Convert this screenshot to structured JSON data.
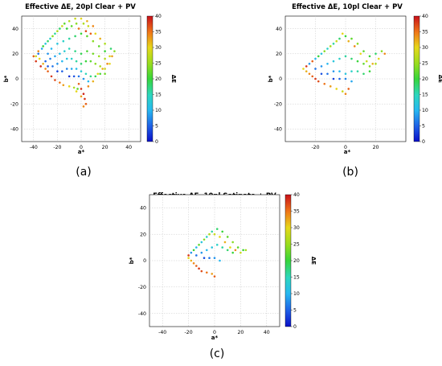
{
  "chart_data": [
    {
      "type": "scatter",
      "title": "Effective ΔE, 20pl Clear + PV",
      "xlabel": "a*",
      "ylabel": "b*",
      "colorbar_label": "ΔE",
      "xlim": [
        -50,
        50
      ],
      "ylim": [
        -50,
        50
      ],
      "clim": [
        0,
        40
      ],
      "xticks": [
        -40,
        -20,
        0,
        20,
        40
      ],
      "yticks": [
        -40,
        -20,
        0,
        20,
        40
      ],
      "cticks": [
        0,
        5,
        10,
        15,
        20,
        25,
        30,
        35,
        40
      ],
      "grid": true,
      "panel_label": "(a)",
      "points": [
        [
          -38,
          18,
          28
        ],
        [
          -35,
          16,
          30
        ],
        [
          -32,
          12,
          32
        ],
        [
          -30,
          8,
          34
        ],
        [
          -28,
          6,
          36
        ],
        [
          -25,
          2,
          38
        ],
        [
          -22,
          -1,
          37
        ],
        [
          -18,
          -3,
          35
        ],
        [
          -15,
          -5,
          33
        ],
        [
          -10,
          -6,
          30
        ],
        [
          -6,
          -7,
          26
        ],
        [
          -3,
          -8,
          22
        ],
        [
          -36,
          20,
          6
        ],
        [
          -33,
          24,
          9
        ],
        [
          -30,
          28,
          12
        ],
        [
          -26,
          32,
          14
        ],
        [
          -22,
          36,
          16
        ],
        [
          -18,
          40,
          18
        ],
        [
          -14,
          44,
          22
        ],
        [
          -10,
          46,
          26
        ],
        [
          -5,
          48,
          28
        ],
        [
          0,
          48,
          30
        ],
        [
          5,
          46,
          32
        ],
        [
          10,
          42,
          34
        ],
        [
          -28,
          20,
          8
        ],
        [
          -25,
          24,
          10
        ],
        [
          -20,
          28,
          12
        ],
        [
          -15,
          30,
          14
        ],
        [
          -10,
          32,
          16
        ],
        [
          -5,
          34,
          18
        ],
        [
          0,
          36,
          20
        ],
        [
          5,
          34,
          22
        ],
        [
          10,
          30,
          24
        ],
        [
          15,
          26,
          22
        ],
        [
          20,
          22,
          20
        ],
        [
          25,
          24,
          18
        ],
        [
          28,
          22,
          24
        ],
        [
          -30,
          14,
          5
        ],
        [
          -26,
          16,
          7
        ],
        [
          -22,
          18,
          9
        ],
        [
          -18,
          20,
          11
        ],
        [
          -14,
          22,
          13
        ],
        [
          -10,
          24,
          15
        ],
        [
          -5,
          22,
          17
        ],
        [
          0,
          20,
          19
        ],
        [
          5,
          22,
          21
        ],
        [
          10,
          20,
          23
        ],
        [
          15,
          18,
          25
        ],
        [
          20,
          16,
          27
        ],
        [
          24,
          18,
          29
        ],
        [
          -28,
          10,
          4
        ],
        [
          -24,
          10,
          6
        ],
        [
          -20,
          12,
          8
        ],
        [
          -16,
          14,
          10
        ],
        [
          -12,
          16,
          12
        ],
        [
          -8,
          16,
          14
        ],
        [
          -4,
          14,
          16
        ],
        [
          0,
          12,
          18
        ],
        [
          4,
          14,
          20
        ],
        [
          8,
          14,
          22
        ],
        [
          12,
          12,
          24
        ],
        [
          16,
          10,
          26
        ],
        [
          20,
          8,
          28
        ],
        [
          24,
          12,
          30
        ],
        [
          -20,
          6,
          3
        ],
        [
          -16,
          6,
          5
        ],
        [
          -12,
          8,
          7
        ],
        [
          -8,
          8,
          9
        ],
        [
          -4,
          8,
          11
        ],
        [
          0,
          6,
          13
        ],
        [
          4,
          4,
          15
        ],
        [
          8,
          2,
          17
        ],
        [
          12,
          2,
          19
        ],
        [
          16,
          4,
          21
        ],
        [
          20,
          4,
          23
        ],
        [
          -10,
          2,
          2
        ],
        [
          -6,
          2,
          4
        ],
        [
          -2,
          2,
          6
        ],
        [
          2,
          0,
          8
        ],
        [
          6,
          -2,
          10
        ],
        [
          -2,
          -4,
          36
        ],
        [
          0,
          -8,
          38
        ],
        [
          2,
          -12,
          39
        ],
        [
          3,
          -16,
          38
        ],
        [
          4,
          -20,
          36
        ],
        [
          2,
          -22,
          34
        ],
        [
          0,
          -14,
          33
        ],
        [
          -4,
          -10,
          30
        ],
        [
          6,
          -6,
          34
        ],
        [
          10,
          -2,
          32
        ],
        [
          14,
          4,
          30
        ],
        [
          18,
          8,
          32
        ],
        [
          22,
          12,
          34
        ],
        [
          26,
          18,
          33
        ],
        [
          -34,
          10,
          39
        ],
        [
          -38,
          14,
          38
        ],
        [
          -40,
          18,
          36
        ],
        [
          -36,
          22,
          34
        ],
        [
          -32,
          26,
          20
        ],
        [
          -28,
          30,
          18
        ],
        [
          -24,
          34,
          24
        ],
        [
          -20,
          38,
          26
        ],
        [
          -16,
          42,
          28
        ],
        [
          -12,
          40,
          20
        ],
        [
          -8,
          42,
          22
        ],
        [
          -4,
          44,
          24
        ],
        [
          2,
          44,
          26
        ],
        [
          6,
          42,
          28
        ],
        [
          12,
          36,
          30
        ],
        [
          16,
          32,
          32
        ],
        [
          20,
          28,
          26
        ],
        [
          -2,
          40,
          35
        ],
        [
          4,
          38,
          37
        ],
        [
          8,
          36,
          36
        ]
      ]
    },
    {
      "type": "scatter",
      "title": "Effective ΔE, 10pl Clear + PV",
      "xlabel": "a*",
      "ylabel": "b*",
      "colorbar_label": "ΔE",
      "xlim": [
        -40,
        40
      ],
      "ylim": [
        -50,
        50
      ],
      "clim": [
        0,
        40
      ],
      "xticks": [
        -20,
        0,
        20
      ],
      "yticks": [
        -40,
        -20,
        0,
        20,
        40
      ],
      "cticks": [
        0,
        5,
        10,
        15,
        20,
        25,
        30,
        35,
        40
      ],
      "grid": true,
      "panel_label": "(b)",
      "points": [
        [
          -28,
          8,
          30
        ],
        [
          -26,
          6,
          32
        ],
        [
          -24,
          4,
          34
        ],
        [
          -22,
          2,
          36
        ],
        [
          -20,
          0,
          38
        ],
        [
          -18,
          -2,
          37
        ],
        [
          -14,
          -4,
          35
        ],
        [
          -10,
          -6,
          33
        ],
        [
          -6,
          -8,
          30
        ],
        [
          -2,
          -10,
          28
        ],
        [
          0,
          -12,
          34
        ],
        [
          2,
          -8,
          36
        ],
        [
          -24,
          12,
          8
        ],
        [
          -20,
          16,
          10
        ],
        [
          -16,
          20,
          12
        ],
        [
          -12,
          24,
          14
        ],
        [
          -8,
          28,
          16
        ],
        [
          -4,
          32,
          18
        ],
        [
          0,
          34,
          20
        ],
        [
          4,
          32,
          22
        ],
        [
          8,
          28,
          24
        ],
        [
          12,
          22,
          22
        ],
        [
          16,
          18,
          20
        ],
        [
          20,
          20,
          18
        ],
        [
          24,
          22,
          24
        ],
        [
          -20,
          8,
          6
        ],
        [
          -16,
          10,
          8
        ],
        [
          -12,
          12,
          10
        ],
        [
          -8,
          14,
          12
        ],
        [
          -4,
          16,
          14
        ],
        [
          0,
          18,
          16
        ],
        [
          4,
          16,
          18
        ],
        [
          8,
          14,
          20
        ],
        [
          12,
          12,
          22
        ],
        [
          16,
          10,
          24
        ],
        [
          20,
          12,
          26
        ],
        [
          -16,
          4,
          4
        ],
        [
          -12,
          4,
          6
        ],
        [
          -8,
          6,
          8
        ],
        [
          -4,
          6,
          10
        ],
        [
          0,
          4,
          12
        ],
        [
          4,
          6,
          14
        ],
        [
          8,
          6,
          16
        ],
        [
          12,
          4,
          18
        ],
        [
          16,
          6,
          20
        ],
        [
          -8,
          0,
          3
        ],
        [
          -4,
          0,
          5
        ],
        [
          0,
          0,
          7
        ],
        [
          4,
          -2,
          9
        ],
        [
          -26,
          10,
          38
        ],
        [
          -22,
          14,
          36
        ],
        [
          -18,
          18,
          20
        ],
        [
          -14,
          22,
          24
        ],
        [
          -10,
          26,
          26
        ],
        [
          -6,
          30,
          28
        ],
        [
          -2,
          36,
          30
        ],
        [
          2,
          30,
          32
        ],
        [
          6,
          26,
          34
        ],
        [
          10,
          20,
          30
        ],
        [
          14,
          14,
          28
        ],
        [
          18,
          12,
          32
        ],
        [
          22,
          16,
          30
        ],
        [
          26,
          20,
          34
        ]
      ]
    },
    {
      "type": "scatter",
      "title": "Effective ΔE, 10pl Satinato + PV",
      "xlabel": "a*",
      "ylabel": "b*",
      "colorbar_label": "ΔE",
      "xlim": [
        -50,
        50
      ],
      "ylim": [
        -50,
        50
      ],
      "clim": [
        0,
        40
      ],
      "xticks": [
        -40,
        -20,
        0,
        20,
        40
      ],
      "yticks": [
        -40,
        -20,
        0,
        20,
        40
      ],
      "cticks": [
        0,
        5,
        10,
        15,
        20,
        25,
        30,
        35,
        40
      ],
      "grid": true,
      "panel_label": "(c)",
      "points": [
        [
          -20,
          2,
          30
        ],
        [
          -18,
          0,
          32
        ],
        [
          -16,
          -2,
          34
        ],
        [
          -14,
          -4,
          36
        ],
        [
          -12,
          -6,
          38
        ],
        [
          -10,
          -8,
          37
        ],
        [
          -6,
          -9,
          35
        ],
        [
          -2,
          -10,
          33
        ],
        [
          0,
          -12,
          36
        ],
        [
          -18,
          6,
          8
        ],
        [
          -14,
          10,
          10
        ],
        [
          -10,
          14,
          12
        ],
        [
          -6,
          18,
          14
        ],
        [
          -2,
          22,
          16
        ],
        [
          2,
          24,
          18
        ],
        [
          6,
          22,
          20
        ],
        [
          10,
          18,
          22
        ],
        [
          14,
          14,
          24
        ],
        [
          18,
          10,
          22
        ],
        [
          22,
          8,
          20
        ],
        [
          -14,
          4,
          6
        ],
        [
          -10,
          6,
          8
        ],
        [
          -6,
          8,
          10
        ],
        [
          -2,
          10,
          12
        ],
        [
          2,
          12,
          14
        ],
        [
          6,
          10,
          16
        ],
        [
          10,
          8,
          18
        ],
        [
          14,
          6,
          20
        ],
        [
          -8,
          2,
          4
        ],
        [
          -4,
          2,
          6
        ],
        [
          0,
          2,
          8
        ],
        [
          4,
          0,
          10
        ],
        [
          -20,
          4,
          38
        ],
        [
          -16,
          8,
          20
        ],
        [
          -12,
          12,
          22
        ],
        [
          -8,
          16,
          24
        ],
        [
          -4,
          20,
          26
        ],
        [
          0,
          20,
          28
        ],
        [
          4,
          18,
          30
        ],
        [
          8,
          14,
          32
        ],
        [
          12,
          10,
          30
        ],
        [
          16,
          8,
          34
        ],
        [
          20,
          6,
          28
        ],
        [
          24,
          8,
          26
        ]
      ]
    }
  ]
}
